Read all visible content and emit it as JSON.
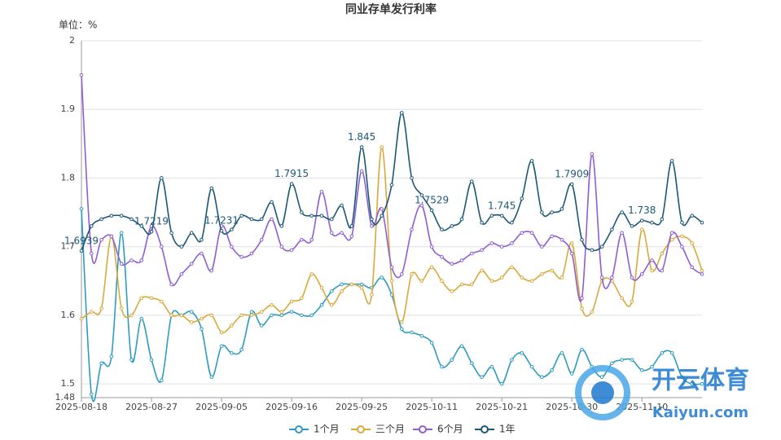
{
  "chart_data": {
    "type": "line",
    "title": "同业存单发行利率",
    "y_unit_label": "单位：%",
    "categories": [
      "2025-08-18",
      null,
      null,
      null,
      null,
      null,
      null,
      "2025-08-27",
      null,
      null,
      null,
      null,
      null,
      null,
      "2025-09-05",
      null,
      null,
      null,
      null,
      null,
      null,
      "2025-09-16",
      null,
      null,
      null,
      null,
      null,
      null,
      "2025-09-25",
      null,
      null,
      null,
      null,
      null,
      null,
      "2025-10-11",
      null,
      null,
      null,
      null,
      null,
      null,
      "2025-10-21",
      null,
      null,
      null,
      null,
      null,
      null,
      "2025-10-30",
      null,
      null,
      null,
      null,
      null,
      null,
      "2025-11-10",
      null,
      null,
      null,
      null,
      null,
      null
    ],
    "series": [
      {
        "name": "1个月",
        "color": "#2e9bc0",
        "values": [
          1.755,
          1.485,
          1.53,
          1.54,
          1.72,
          1.535,
          1.595,
          1.535,
          1.505,
          1.6,
          1.6,
          1.605,
          1.58,
          1.51,
          1.555,
          1.545,
          1.55,
          1.605,
          1.585,
          1.6,
          1.6,
          1.605,
          1.6,
          1.6,
          1.615,
          1.635,
          1.645,
          1.645,
          1.645,
          1.64,
          1.655,
          1.63,
          1.58,
          1.575,
          1.57,
          1.56,
          1.525,
          1.535,
          1.555,
          1.53,
          1.51,
          1.525,
          1.5,
          1.535,
          1.545,
          1.525,
          1.51,
          1.52,
          1.545,
          1.515,
          1.55,
          1.525,
          1.51,
          1.53,
          1.535,
          1.535,
          1.52,
          1.525,
          1.545,
          1.545,
          1.51,
          1.5,
          1.5
        ]
      },
      {
        "name": "三个月",
        "color": "#d9a93c",
        "values": [
          1.595,
          1.605,
          1.61,
          1.715,
          1.61,
          1.6,
          1.625,
          1.625,
          1.62,
          1.6,
          1.6,
          1.59,
          1.595,
          1.6,
          1.575,
          1.585,
          1.6,
          1.6,
          1.605,
          1.615,
          1.605,
          1.62,
          1.625,
          1.66,
          1.64,
          1.615,
          1.635,
          1.645,
          1.64,
          1.63,
          1.845,
          1.65,
          1.59,
          1.66,
          1.65,
          1.67,
          1.65,
          1.635,
          1.645,
          1.645,
          1.665,
          1.65,
          1.655,
          1.67,
          1.655,
          1.65,
          1.66,
          1.665,
          1.655,
          1.705,
          1.61,
          1.605,
          1.65,
          1.65,
          1.625,
          1.62,
          1.725,
          1.665,
          1.69,
          1.71,
          1.715,
          1.705,
          1.665
        ]
      },
      {
        "name": "6个月",
        "color": "#8d5fd3",
        "values": [
          1.95,
          1.69,
          1.71,
          1.715,
          1.675,
          1.68,
          1.68,
          1.73,
          1.7,
          1.645,
          1.66,
          1.675,
          1.69,
          1.665,
          1.73,
          1.7,
          1.685,
          1.69,
          1.71,
          1.74,
          1.7,
          1.695,
          1.71,
          1.71,
          1.78,
          1.72,
          1.72,
          1.715,
          1.81,
          1.73,
          1.755,
          1.67,
          1.66,
          1.725,
          1.76,
          1.7,
          1.685,
          1.675,
          1.68,
          1.69,
          1.695,
          1.705,
          1.7,
          1.705,
          1.72,
          1.72,
          1.7,
          1.715,
          1.71,
          1.69,
          1.625,
          1.835,
          1.655,
          1.655,
          1.72,
          1.655,
          1.66,
          1.68,
          1.665,
          1.72,
          1.7,
          1.67,
          1.66
        ]
      },
      {
        "name": "1年",
        "color": "#1b5878",
        "values": [
          1.6939,
          1.73,
          1.74,
          1.745,
          1.745,
          1.74,
          1.73,
          1.7219,
          1.8,
          1.72,
          1.7,
          1.72,
          1.71,
          1.785,
          1.7231,
          1.725,
          1.745,
          1.74,
          1.74,
          1.765,
          1.73,
          1.7915,
          1.75,
          1.745,
          1.745,
          1.74,
          1.76,
          1.73,
          1.845,
          1.74,
          1.745,
          1.79,
          1.895,
          1.8,
          1.775,
          1.7529,
          1.725,
          1.73,
          1.74,
          1.795,
          1.735,
          1.745,
          1.745,
          1.735,
          1.77,
          1.825,
          1.75,
          1.75,
          1.755,
          1.7909,
          1.71,
          1.695,
          1.7,
          1.725,
          1.75,
          1.73,
          1.738,
          1.735,
          1.74,
          1.825,
          1.735,
          1.745,
          1.735
        ],
        "value_labels": [
          "1.6939",
          null,
          null,
          null,
          null,
          null,
          null,
          "1.7219",
          null,
          null,
          null,
          null,
          null,
          null,
          "1.7231",
          null,
          null,
          null,
          null,
          null,
          null,
          "1.7915",
          null,
          null,
          null,
          null,
          null,
          null,
          "1.845",
          null,
          null,
          null,
          null,
          null,
          null,
          "1.7529",
          null,
          null,
          null,
          null,
          null,
          null,
          "1.745",
          null,
          null,
          null,
          null,
          null,
          null,
          "1.7909",
          null,
          null,
          null,
          null,
          null,
          null,
          "1.738",
          null,
          null,
          null,
          null,
          null,
          null
        ]
      }
    ],
    "ylim": [
      1.48,
      2
    ],
    "yticks": [
      1.48,
      1.5,
      1.6,
      1.7,
      1.8,
      1.9,
      2
    ],
    "grid": true,
    "smooth": true,
    "legend": "bottom",
    "watermark": {
      "text": "开云体育",
      "url": "Kaiyun.com"
    }
  }
}
